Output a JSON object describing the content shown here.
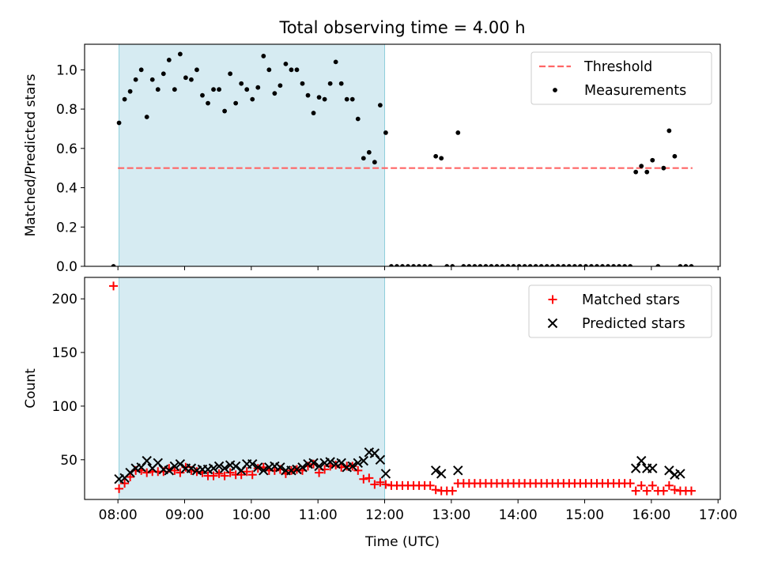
{
  "chart_data": [
    {
      "type": "scatter",
      "title": "Total observing time = 4.00 h",
      "xlabel": "",
      "ylabel": "Matched/Predicted stars",
      "xlim": [
        "07:30",
        "17:02"
      ],
      "ylim": [
        0,
        1.13
      ],
      "y_ticks": [
        "0.0",
        "0.2",
        "0.4",
        "0.6",
        "0.8",
        "1.0"
      ],
      "y_tick_values": [
        0,
        0.2,
        0.4,
        0.6,
        0.8,
        1.0
      ],
      "shaded_region": {
        "x_start": "08:01",
        "x_end": "12:00",
        "color": "#add8e6"
      },
      "legend": {
        "placement": "top-right",
        "entries": [
          "Threshold",
          "Measurements"
        ]
      },
      "series": [
        {
          "name": "Threshold",
          "style": "dashed-line",
          "color": "#ff6666",
          "x": [
            "08:00",
            "16:37"
          ],
          "y": [
            0.5,
            0.5
          ]
        },
        {
          "name": "Measurements",
          "style": "dot",
          "color": "#000000",
          "x": [
            "07:56",
            "08:01",
            "08:06",
            "08:11",
            "08:16",
            "08:21",
            "08:26",
            "08:31",
            "08:36",
            "08:41",
            "08:46",
            "08:51",
            "08:56",
            "09:01",
            "09:06",
            "09:11",
            "09:16",
            "09:21",
            "09:26",
            "09:31",
            "09:36",
            "09:41",
            "09:46",
            "09:51",
            "09:56",
            "10:01",
            "10:06",
            "10:11",
            "10:16",
            "10:21",
            "10:26",
            "10:31",
            "10:36",
            "10:41",
            "10:46",
            "10:51",
            "10:56",
            "11:01",
            "11:06",
            "11:11",
            "11:16",
            "11:21",
            "11:26",
            "11:31",
            "11:36",
            "11:41",
            "11:46",
            "11:51",
            "11:56",
            "12:01",
            "12:06",
            "12:11",
            "12:16",
            "12:21",
            "12:26",
            "12:31",
            "12:36",
            "12:41",
            "12:46",
            "12:51",
            "12:56",
            "13:01",
            "13:06",
            "13:11",
            "13:16",
            "13:21",
            "13:26",
            "13:31",
            "13:36",
            "13:41",
            "13:46",
            "13:51",
            "13:56",
            "14:01",
            "14:06",
            "14:11",
            "14:16",
            "14:21",
            "14:26",
            "14:31",
            "14:36",
            "14:41",
            "14:46",
            "14:51",
            "14:56",
            "15:01",
            "15:06",
            "15:11",
            "15:16",
            "15:21",
            "15:26",
            "15:31",
            "15:36",
            "15:41",
            "15:46",
            "15:51",
            "15:56",
            "16:01",
            "16:06",
            "16:11",
            "16:16",
            "16:21",
            "16:26",
            "16:31",
            "16:36"
          ],
          "y": [
            0.0,
            0.73,
            0.85,
            0.89,
            0.95,
            1.0,
            0.76,
            0.95,
            0.9,
            0.98,
            1.05,
            0.9,
            1.08,
            0.96,
            0.95,
            1.0,
            0.87,
            0.83,
            0.9,
            0.9,
            0.79,
            0.98,
            0.83,
            0.93,
            0.9,
            0.85,
            0.91,
            1.07,
            1.0,
            0.88,
            0.92,
            1.03,
            1.0,
            1.0,
            0.93,
            0.87,
            0.78,
            0.86,
            0.85,
            0.93,
            1.04,
            0.93,
            0.85,
            0.85,
            0.75,
            0.55,
            0.58,
            0.53,
            0.82,
            0.68,
            0.0,
            0.0,
            0.0,
            0.0,
            0.0,
            0.0,
            0.0,
            0.0,
            0.56,
            0.55,
            0.0,
            0.0,
            0.68,
            0.0,
            0.0,
            0.0,
            0.0,
            0.0,
            0.0,
            0.0,
            0.0,
            0.0,
            0.0,
            0.0,
            0.0,
            0.0,
            0.0,
            0.0,
            0.0,
            0.0,
            0.0,
            0.0,
            0.0,
            0.0,
            0.0,
            0.0,
            0.0,
            0.0,
            0.0,
            0.0,
            0.0,
            0.0,
            0.0,
            0.0,
            0.48,
            0.51,
            0.48,
            0.54,
            0.0,
            0.5,
            0.69,
            0.56,
            0.0,
            0.0,
            0.0
          ]
        }
      ]
    },
    {
      "type": "scatter",
      "title": "",
      "xlabel": "Time (UTC)",
      "ylabel": "Count",
      "xlim": [
        "07:30",
        "17:02"
      ],
      "ylim": [
        13,
        220
      ],
      "x_ticks": [
        "08:00",
        "09:00",
        "10:00",
        "11:00",
        "12:00",
        "13:00",
        "14:00",
        "15:00",
        "16:00",
        "17:00"
      ],
      "y_ticks": [
        "50",
        "100",
        "150",
        "200"
      ],
      "y_tick_values": [
        50,
        100,
        150,
        200
      ],
      "shaded_region": {
        "x_start": "08:01",
        "x_end": "12:00",
        "color": "#add8e6"
      },
      "legend": {
        "placement": "top-right",
        "entries": [
          "Matched stars",
          "Predicted stars"
        ]
      },
      "series": [
        {
          "name": "Matched stars",
          "marker": "+",
          "color": "#ff0000",
          "x": [
            "07:56",
            "08:01",
            "08:06",
            "08:11",
            "08:16",
            "08:21",
            "08:26",
            "08:31",
            "08:36",
            "08:41",
            "08:46",
            "08:51",
            "08:56",
            "09:01",
            "09:06",
            "09:11",
            "09:16",
            "09:21",
            "09:26",
            "09:31",
            "09:36",
            "09:41",
            "09:46",
            "09:51",
            "09:56",
            "10:01",
            "10:06",
            "10:11",
            "10:16",
            "10:21",
            "10:26",
            "10:31",
            "10:36",
            "10:41",
            "10:46",
            "10:51",
            "10:56",
            "11:01",
            "11:06",
            "11:11",
            "11:16",
            "11:21",
            "11:26",
            "11:31",
            "11:36",
            "11:41",
            "11:46",
            "11:51",
            "11:56",
            "12:01",
            "12:06",
            "12:11",
            "12:16",
            "12:21",
            "12:26",
            "12:31",
            "12:36",
            "12:41",
            "12:46",
            "12:51",
            "12:56",
            "13:01",
            "13:06",
            "13:11",
            "13:16",
            "13:21",
            "13:26",
            "13:31",
            "13:36",
            "13:41",
            "13:46",
            "13:51",
            "13:56",
            "14:01",
            "14:06",
            "14:11",
            "14:16",
            "14:21",
            "14:26",
            "14:31",
            "14:36",
            "14:41",
            "14:46",
            "14:51",
            "14:56",
            "15:01",
            "15:06",
            "15:11",
            "15:16",
            "15:21",
            "15:26",
            "15:31",
            "15:36",
            "15:41",
            "15:46",
            "15:51",
            "15:56",
            "16:01",
            "16:06",
            "16:11",
            "16:16",
            "16:21",
            "16:26",
            "16:31",
            "16:36"
          ],
          "y": [
            212,
            23,
            28,
            34,
            40,
            40,
            38,
            39,
            39,
            39,
            42,
            40,
            38,
            43,
            40,
            39,
            38,
            35,
            35,
            37,
            35,
            38,
            36,
            36,
            39,
            36,
            42,
            43,
            40,
            40,
            41,
            37,
            40,
            41,
            40,
            44,
            46,
            38,
            41,
            44,
            45,
            43,
            44,
            44,
            40,
            32,
            33,
            27,
            29,
            27,
            26,
            26,
            26,
            26,
            26,
            26,
            26,
            26,
            22,
            21,
            21,
            21,
            28,
            28,
            28,
            28,
            28,
            28,
            28,
            28,
            28,
            28,
            28,
            28,
            28,
            28,
            28,
            28,
            28,
            28,
            28,
            28,
            28,
            28,
            28,
            28,
            28,
            28,
            28,
            28,
            28,
            28,
            28,
            28,
            21,
            26,
            21,
            26,
            21,
            21,
            26,
            22,
            21,
            21,
            21
          ]
        },
        {
          "name": "Predicted stars",
          "marker": "x",
          "color": "#000000",
          "x": [
            "08:01",
            "08:06",
            "08:11",
            "08:16",
            "08:21",
            "08:26",
            "08:31",
            "08:36",
            "08:41",
            "08:46",
            "08:51",
            "08:56",
            "09:01",
            "09:06",
            "09:11",
            "09:16",
            "09:21",
            "09:26",
            "09:31",
            "09:36",
            "09:41",
            "09:46",
            "09:51",
            "09:56",
            "10:01",
            "10:06",
            "10:11",
            "10:16",
            "10:21",
            "10:26",
            "10:31",
            "10:36",
            "10:41",
            "10:46",
            "10:51",
            "10:56",
            "11:01",
            "11:06",
            "11:11",
            "11:16",
            "11:21",
            "11:26",
            "11:31",
            "11:36",
            "11:41",
            "11:46",
            "11:51",
            "11:56",
            "12:01",
            "12:46",
            "12:51",
            "13:06",
            "15:46",
            "15:51",
            "15:56",
            "16:01",
            "16:16",
            "16:21",
            "16:26"
          ],
          "y": [
            32,
            33,
            38,
            42,
            43,
            49,
            42,
            47,
            41,
            40,
            44,
            46,
            42,
            42,
            40,
            41,
            41,
            42,
            44,
            42,
            45,
            44,
            40,
            46,
            46,
            43,
            40,
            43,
            44,
            43,
            40,
            40,
            41,
            43,
            46,
            47,
            44,
            47,
            48,
            46,
            47,
            43,
            44,
            47,
            49,
            57,
            56,
            50,
            37,
            40,
            37,
            40,
            42,
            49,
            42,
            42,
            40,
            36,
            37
          ]
        }
      ]
    }
  ]
}
